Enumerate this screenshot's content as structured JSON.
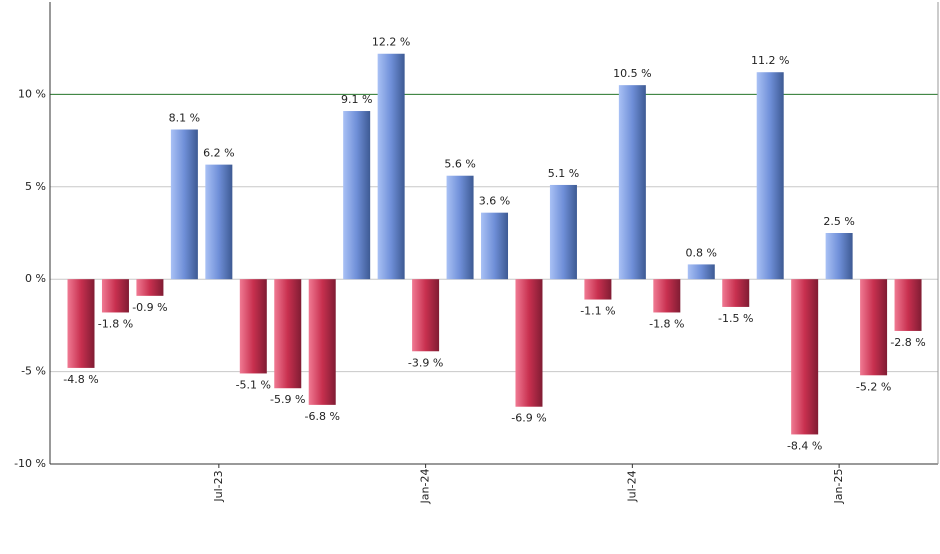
{
  "chart_data": {
    "type": "bar",
    "categories": [
      null,
      null,
      null,
      null,
      "Jul-23",
      null,
      null,
      null,
      null,
      null,
      "Jan-24",
      null,
      null,
      null,
      null,
      null,
      "Jul-24",
      null,
      null,
      null,
      null,
      null,
      "Jan-25",
      null,
      null
    ],
    "values": [
      -4.8,
      -1.8,
      -0.9,
      8.1,
      6.2,
      -5.1,
      -5.9,
      -6.8,
      9.1,
      12.2,
      -3.9,
      5.6,
      3.6,
      -6.9,
      5.1,
      -1.1,
      10.5,
      -1.8,
      0.8,
      -1.5,
      11.2,
      -8.4,
      2.5,
      -5.2,
      -2.8
    ],
    "value_labels": [
      "-4.8 %",
      "-1.8 %",
      "-0.9 %",
      "8.1 %",
      "6.2 %",
      "-5.1 %",
      "-5.9 %",
      "-6.8 %",
      "9.1 %",
      "12.2 %",
      "-3.9 %",
      "5.6 %",
      "3.6 %",
      "-6.9 %",
      "5.1 %",
      "-1.1 %",
      "10.5 %",
      "-1.8 %",
      "0.8 %",
      "-1.5 %",
      "11.2 %",
      "-8.4 %",
      "2.5 %",
      "-5.2 %",
      "-2.8 %"
    ],
    "ylim": [
      -10,
      15
    ],
    "yticks": [
      {
        "value": -10,
        "label": "-10 %"
      },
      {
        "value": -5,
        "label": "-5 %"
      },
      {
        "value": 0,
        "label": "0 %"
      },
      {
        "value": 5,
        "label": "5 %"
      },
      {
        "value": 10,
        "label": "10 %"
      }
    ],
    "grid": true,
    "reference_line": 10,
    "reference_color": "#2e7d32",
    "positive_color": "#6f8fd8",
    "negative_color": "#c8304f"
  }
}
